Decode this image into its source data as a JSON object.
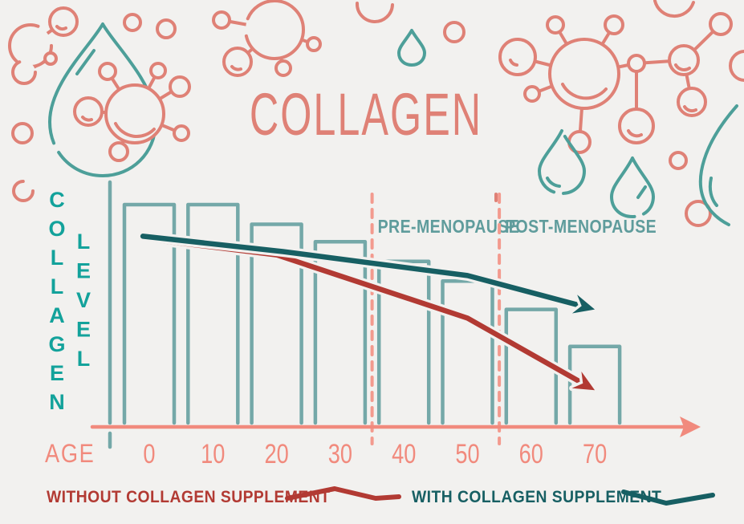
{
  "title": "COLLAGEN",
  "chart_data": {
    "type": "bar+line",
    "title": "COLLAGEN",
    "xlabel": "AGE",
    "ylabel": "COLLAGEN LEVEL",
    "ylabel_stacked": [
      "COLLAGEN",
      "LEVEL"
    ],
    "categories": [
      "0",
      "10",
      "20",
      "30",
      "40",
      "50",
      "60",
      "70"
    ],
    "x_range": [
      0,
      70
    ],
    "grid": false,
    "legend_position": "bottom",
    "axis_color": "#f18a7d",
    "bars": {
      "name": "collagen-level-by-age",
      "color": "#74a8a8",
      "values_pct": [
        100,
        100,
        91,
        83,
        74,
        65,
        52,
        35
      ]
    },
    "series": [
      {
        "name": "WITHOUT COLLAGEN SUPPLEMENT",
        "color": "#b23a33",
        "points": [
          {
            "age": -1,
            "level": 84.5
          },
          {
            "age": 20,
            "level": 77
          },
          {
            "age": 50,
            "level": 48
          },
          {
            "age": 70,
            "level": 15
          }
        ]
      },
      {
        "name": "WITH COLLAGEN SUPPLEMENT",
        "color": "#175f63",
        "points": [
          {
            "age": -1,
            "level": 85.5
          },
          {
            "age": 21,
            "level": 78.5
          },
          {
            "age": 50,
            "level": 67.5
          },
          {
            "age": 70,
            "level": 52
          }
        ]
      }
    ],
    "annotations": [
      {
        "label": "PRE-MENOPAUSE",
        "age": 35
      },
      {
        "label": "POST-MENOPAUSE",
        "age": 55
      }
    ]
  },
  "legend": {
    "items": [
      {
        "label": "WITHOUT COLLAGEN SUPPLEMENT",
        "color": "#b23a33"
      },
      {
        "label": "WITH COLLAGEN SUPPLEMENT",
        "color": "#175f63"
      }
    ]
  },
  "colors": {
    "background": "#f2f1ef",
    "coral": "#df8176",
    "salmon_axis": "#f18a7d",
    "dashed_divider": "#f39a8e",
    "bar_teal": "#74a8a8",
    "bright_teal_letters": "#13a29b",
    "annotation_teal": "#5f9c9c",
    "dark_teal_line": "#175f63",
    "dark_red_line": "#b23a33",
    "drop_teal": "#4d9f99"
  }
}
